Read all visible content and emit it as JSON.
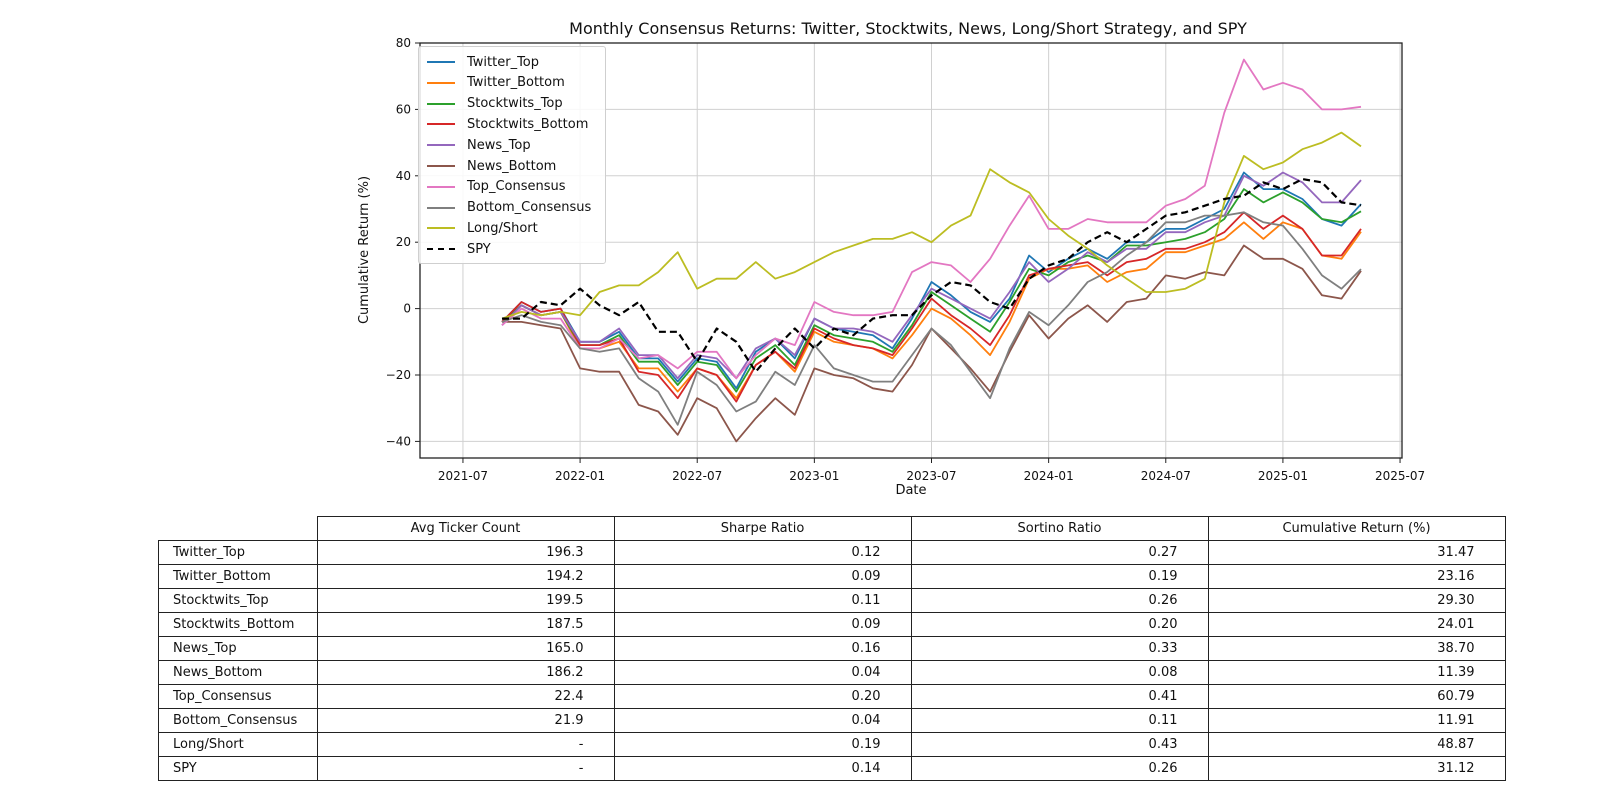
{
  "chart_data": {
    "type": "line",
    "title": "Monthly Consensus Returns: Twitter, Stocktwits, News, Long/Short Strategy, and SPY",
    "xlabel": "Date",
    "ylabel": "Cumulative Return (%)",
    "ylim": [
      -45,
      80
    ],
    "xlim": [
      "2021-07",
      "2025-07"
    ],
    "xticks": [
      "2021-07",
      "2022-01",
      "2022-07",
      "2023-01",
      "2023-07",
      "2024-01",
      "2024-07",
      "2025-01",
      "2025-07"
    ],
    "yticks": [
      "−40",
      "−20",
      "0",
      "20",
      "40",
      "60",
      "80"
    ],
    "grid": true,
    "legend": "upper left",
    "x": [
      "2021-09",
      "2021-10",
      "2021-11",
      "2021-12",
      "2022-01",
      "2022-02",
      "2022-03",
      "2022-04",
      "2022-05",
      "2022-06",
      "2022-07",
      "2022-08",
      "2022-09",
      "2022-10",
      "2022-11",
      "2022-12",
      "2023-01",
      "2023-02",
      "2023-03",
      "2023-04",
      "2023-05",
      "2023-06",
      "2023-07",
      "2023-08",
      "2023-09",
      "2023-10",
      "2023-11",
      "2023-12",
      "2024-01",
      "2024-02",
      "2024-03",
      "2024-04",
      "2024-05",
      "2024-06",
      "2024-07",
      "2024-08",
      "2024-09",
      "2024-10",
      "2024-11",
      "2024-12",
      "2025-01",
      "2025-02",
      "2025-03",
      "2025-04",
      "2025-05"
    ],
    "series": [
      {
        "name": "Twitter_Top",
        "color": "#1f77b4",
        "dash": false,
        "values": [
          -4,
          2,
          -1,
          0,
          -10,
          -10,
          -7,
          -15,
          -15,
          -22,
          -15,
          -16,
          -24,
          -13,
          -9,
          -15,
          -3,
          -6,
          -7,
          -8,
          -12,
          -3,
          8,
          4,
          -1,
          -4,
          3,
          16,
          11,
          15,
          18,
          15,
          20,
          20,
          24,
          24,
          27,
          30,
          41,
          36,
          36,
          33,
          27,
          25,
          31.47
        ]
      },
      {
        "name": "Twitter_Bottom",
        "color": "#ff7f0e",
        "dash": false,
        "values": [
          -4,
          1,
          -2,
          -1,
          -12,
          -12,
          -10,
          -18,
          -18,
          -25,
          -18,
          -20,
          -27,
          -17,
          -13,
          -19,
          -7,
          -10,
          -11,
          -12,
          -15,
          -8,
          0,
          -3,
          -8,
          -14,
          -4,
          9,
          12,
          12,
          13,
          8,
          11,
          12,
          17,
          17,
          19,
          21,
          26,
          21,
          26,
          24,
          16,
          15,
          23.16
        ]
      },
      {
        "name": "Stocktwits_Top",
        "color": "#2ca02c",
        "dash": false,
        "values": [
          -4,
          1,
          -2,
          -1,
          -11,
          -11,
          -8,
          -16,
          -16,
          -23,
          -16,
          -17,
          -25,
          -15,
          -11,
          -17,
          -5,
          -8,
          -9,
          -10,
          -13,
          -5,
          5,
          1,
          -3,
          -7,
          2,
          12,
          10,
          14,
          16,
          14,
          19,
          19,
          20,
          21,
          23,
          27,
          36,
          32,
          35,
          32,
          27,
          26,
          29.3
        ]
      },
      {
        "name": "Stocktwits_Bottom",
        "color": "#d62728",
        "dash": false,
        "values": [
          -4,
          2,
          -1,
          0,
          -11,
          -11,
          -9,
          -19,
          -20,
          -27,
          -18,
          -20,
          -28,
          -17,
          -13,
          -18,
          -6,
          -9,
          -11,
          -12,
          -14,
          -6,
          3,
          -2,
          -6,
          -11,
          -2,
          10,
          12,
          13,
          14,
          10,
          14,
          15,
          18,
          18,
          20,
          23,
          29,
          24,
          28,
          24,
          16,
          16,
          24.01
        ]
      },
      {
        "name": "News_Top",
        "color": "#9467bd",
        "dash": false,
        "values": [
          -5,
          1,
          -2,
          -1,
          -10,
          -10,
          -6,
          -14,
          -14,
          -21,
          -14,
          -15,
          -21,
          -12,
          -9,
          -14,
          -3,
          -6,
          -6,
          -7,
          -10,
          -2,
          6,
          3,
          0,
          -3,
          5,
          14,
          8,
          12,
          17,
          14,
          18,
          18,
          23,
          23,
          26,
          28,
          40,
          37,
          41,
          38,
          32,
          32,
          38.7
        ]
      },
      {
        "name": "News_Bottom",
        "color": "#8c564b",
        "dash": false,
        "values": [
          -4,
          -4,
          -5,
          -6,
          -18,
          -19,
          -19,
          -29,
          -31,
          -38,
          -27,
          -30,
          -40,
          -33,
          -27,
          -32,
          -18,
          -20,
          -21,
          -24,
          -25,
          -17,
          -6,
          -12,
          -18,
          -25,
          -13,
          -2,
          -9,
          -3,
          1,
          -4,
          2,
          3,
          10,
          9,
          11,
          10,
          19,
          15,
          15,
          12,
          4,
          3,
          11.39
        ]
      },
      {
        "name": "Top_Consensus",
        "color": "#e377c2",
        "dash": false,
        "values": [
          -5,
          0,
          -3,
          -3,
          -12,
          -12,
          -9,
          -15,
          -14,
          -18,
          -13,
          -13,
          -21,
          -14,
          -9,
          -11,
          2,
          -1,
          -2,
          -2,
          -1,
          11,
          14,
          13,
          8,
          15,
          25,
          34,
          24,
          24,
          27,
          26,
          26,
          26,
          31,
          33,
          37,
          59,
          75,
          66,
          68,
          66,
          60,
          60,
          60.79
        ]
      },
      {
        "name": "Bottom_Consensus",
        "color": "#7f7f7f",
        "dash": false,
        "values": [
          -4,
          -2,
          -4,
          -5,
          -12,
          -13,
          -12,
          -21,
          -25,
          -35,
          -19,
          -23,
          -31,
          -28,
          -19,
          -23,
          -11,
          -18,
          -20,
          -22,
          -22,
          -14,
          -6,
          -11,
          -19,
          -27,
          -12,
          -1,
          -5,
          1,
          8,
          11,
          16,
          20,
          26,
          26,
          28,
          28,
          29,
          26,
          25,
          18,
          10,
          6,
          11.91
        ]
      },
      {
        "name": "Long/Short",
        "color": "#bcbd22",
        "dash": false,
        "values": [
          -3,
          -1,
          -2,
          -1,
          -2,
          5,
          7,
          7,
          11,
          17,
          6,
          9,
          9,
          14,
          9,
          11,
          14,
          17,
          19,
          21,
          21,
          23,
          20,
          25,
          28,
          42,
          38,
          35,
          27,
          22,
          18,
          13,
          9,
          5,
          5,
          6,
          9,
          32,
          46,
          42,
          44,
          48,
          50,
          53,
          48.87
        ]
      },
      {
        "name": "SPY",
        "color": "#000000",
        "dash": true,
        "values": [
          -3,
          -3,
          2,
          1,
          6,
          1,
          -2,
          2,
          -7,
          -7,
          -16,
          -6,
          -10,
          -19,
          -12,
          -6,
          -12,
          -6,
          -8,
          -3,
          -2,
          -2,
          4,
          8,
          7,
          2,
          0,
          9,
          13,
          15,
          20,
          23,
          20,
          24,
          28,
          29,
          31,
          33,
          34,
          38,
          36,
          39,
          38,
          32,
          31.12
        ]
      }
    ]
  },
  "table": {
    "headers": [
      "Avg Ticker Count",
      "Sharpe Ratio",
      "Sortino Ratio",
      "Cumulative Return (%)"
    ],
    "rows": [
      {
        "label": "Twitter_Top",
        "avg": "196.3",
        "sharpe": "0.12",
        "sortino": "0.27",
        "cum": "31.47"
      },
      {
        "label": "Twitter_Bottom",
        "avg": "194.2",
        "sharpe": "0.09",
        "sortino": "0.19",
        "cum": "23.16"
      },
      {
        "label": "Stocktwits_Top",
        "avg": "199.5",
        "sharpe": "0.11",
        "sortino": "0.26",
        "cum": "29.30"
      },
      {
        "label": "Stocktwits_Bottom",
        "avg": "187.5",
        "sharpe": "0.09",
        "sortino": "0.20",
        "cum": "24.01"
      },
      {
        "label": "News_Top",
        "avg": "165.0",
        "sharpe": "0.16",
        "sortino": "0.33",
        "cum": "38.70"
      },
      {
        "label": "News_Bottom",
        "avg": "186.2",
        "sharpe": "0.04",
        "sortino": "0.08",
        "cum": "11.39"
      },
      {
        "label": "Top_Consensus",
        "avg": "22.4",
        "sharpe": "0.20",
        "sortino": "0.41",
        "cum": "60.79"
      },
      {
        "label": "Bottom_Consensus",
        "avg": "21.9",
        "sharpe": "0.04",
        "sortino": "0.11",
        "cum": "11.91"
      },
      {
        "label": "Long/Short",
        "avg": "-",
        "sharpe": "0.19",
        "sortino": "0.43",
        "cum": "48.87"
      },
      {
        "label": "SPY",
        "avg": "-",
        "sharpe": "0.14",
        "sortino": "0.26",
        "cum": "31.12"
      }
    ]
  }
}
